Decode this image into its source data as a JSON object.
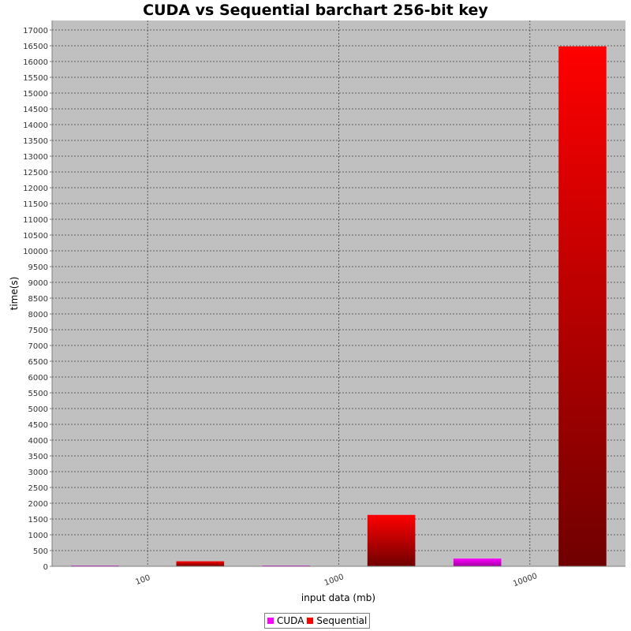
{
  "chart_data": {
    "type": "bar",
    "title": "CUDA vs Sequential barchart 256-bit key",
    "xlabel": "input data (mb)",
    "ylabel": "time(s)",
    "categories": [
      "100",
      "1000",
      "10000"
    ],
    "series": [
      {
        "name": "CUDA",
        "values": [
          2,
          18,
          245
        ],
        "color": "#ff00ff",
        "color_dark": "#a000a0"
      },
      {
        "name": "Sequential",
        "values": [
          160,
          1630,
          16480
        ],
        "color": "#ff0000",
        "color_dark": "#700000"
      }
    ],
    "ylim": [
      0,
      17300
    ],
    "y_tick_step": 500,
    "grid": true,
    "grid_style": "dashed",
    "plot_background": "#c0c0c0",
    "legend_position": "bottom-center"
  }
}
